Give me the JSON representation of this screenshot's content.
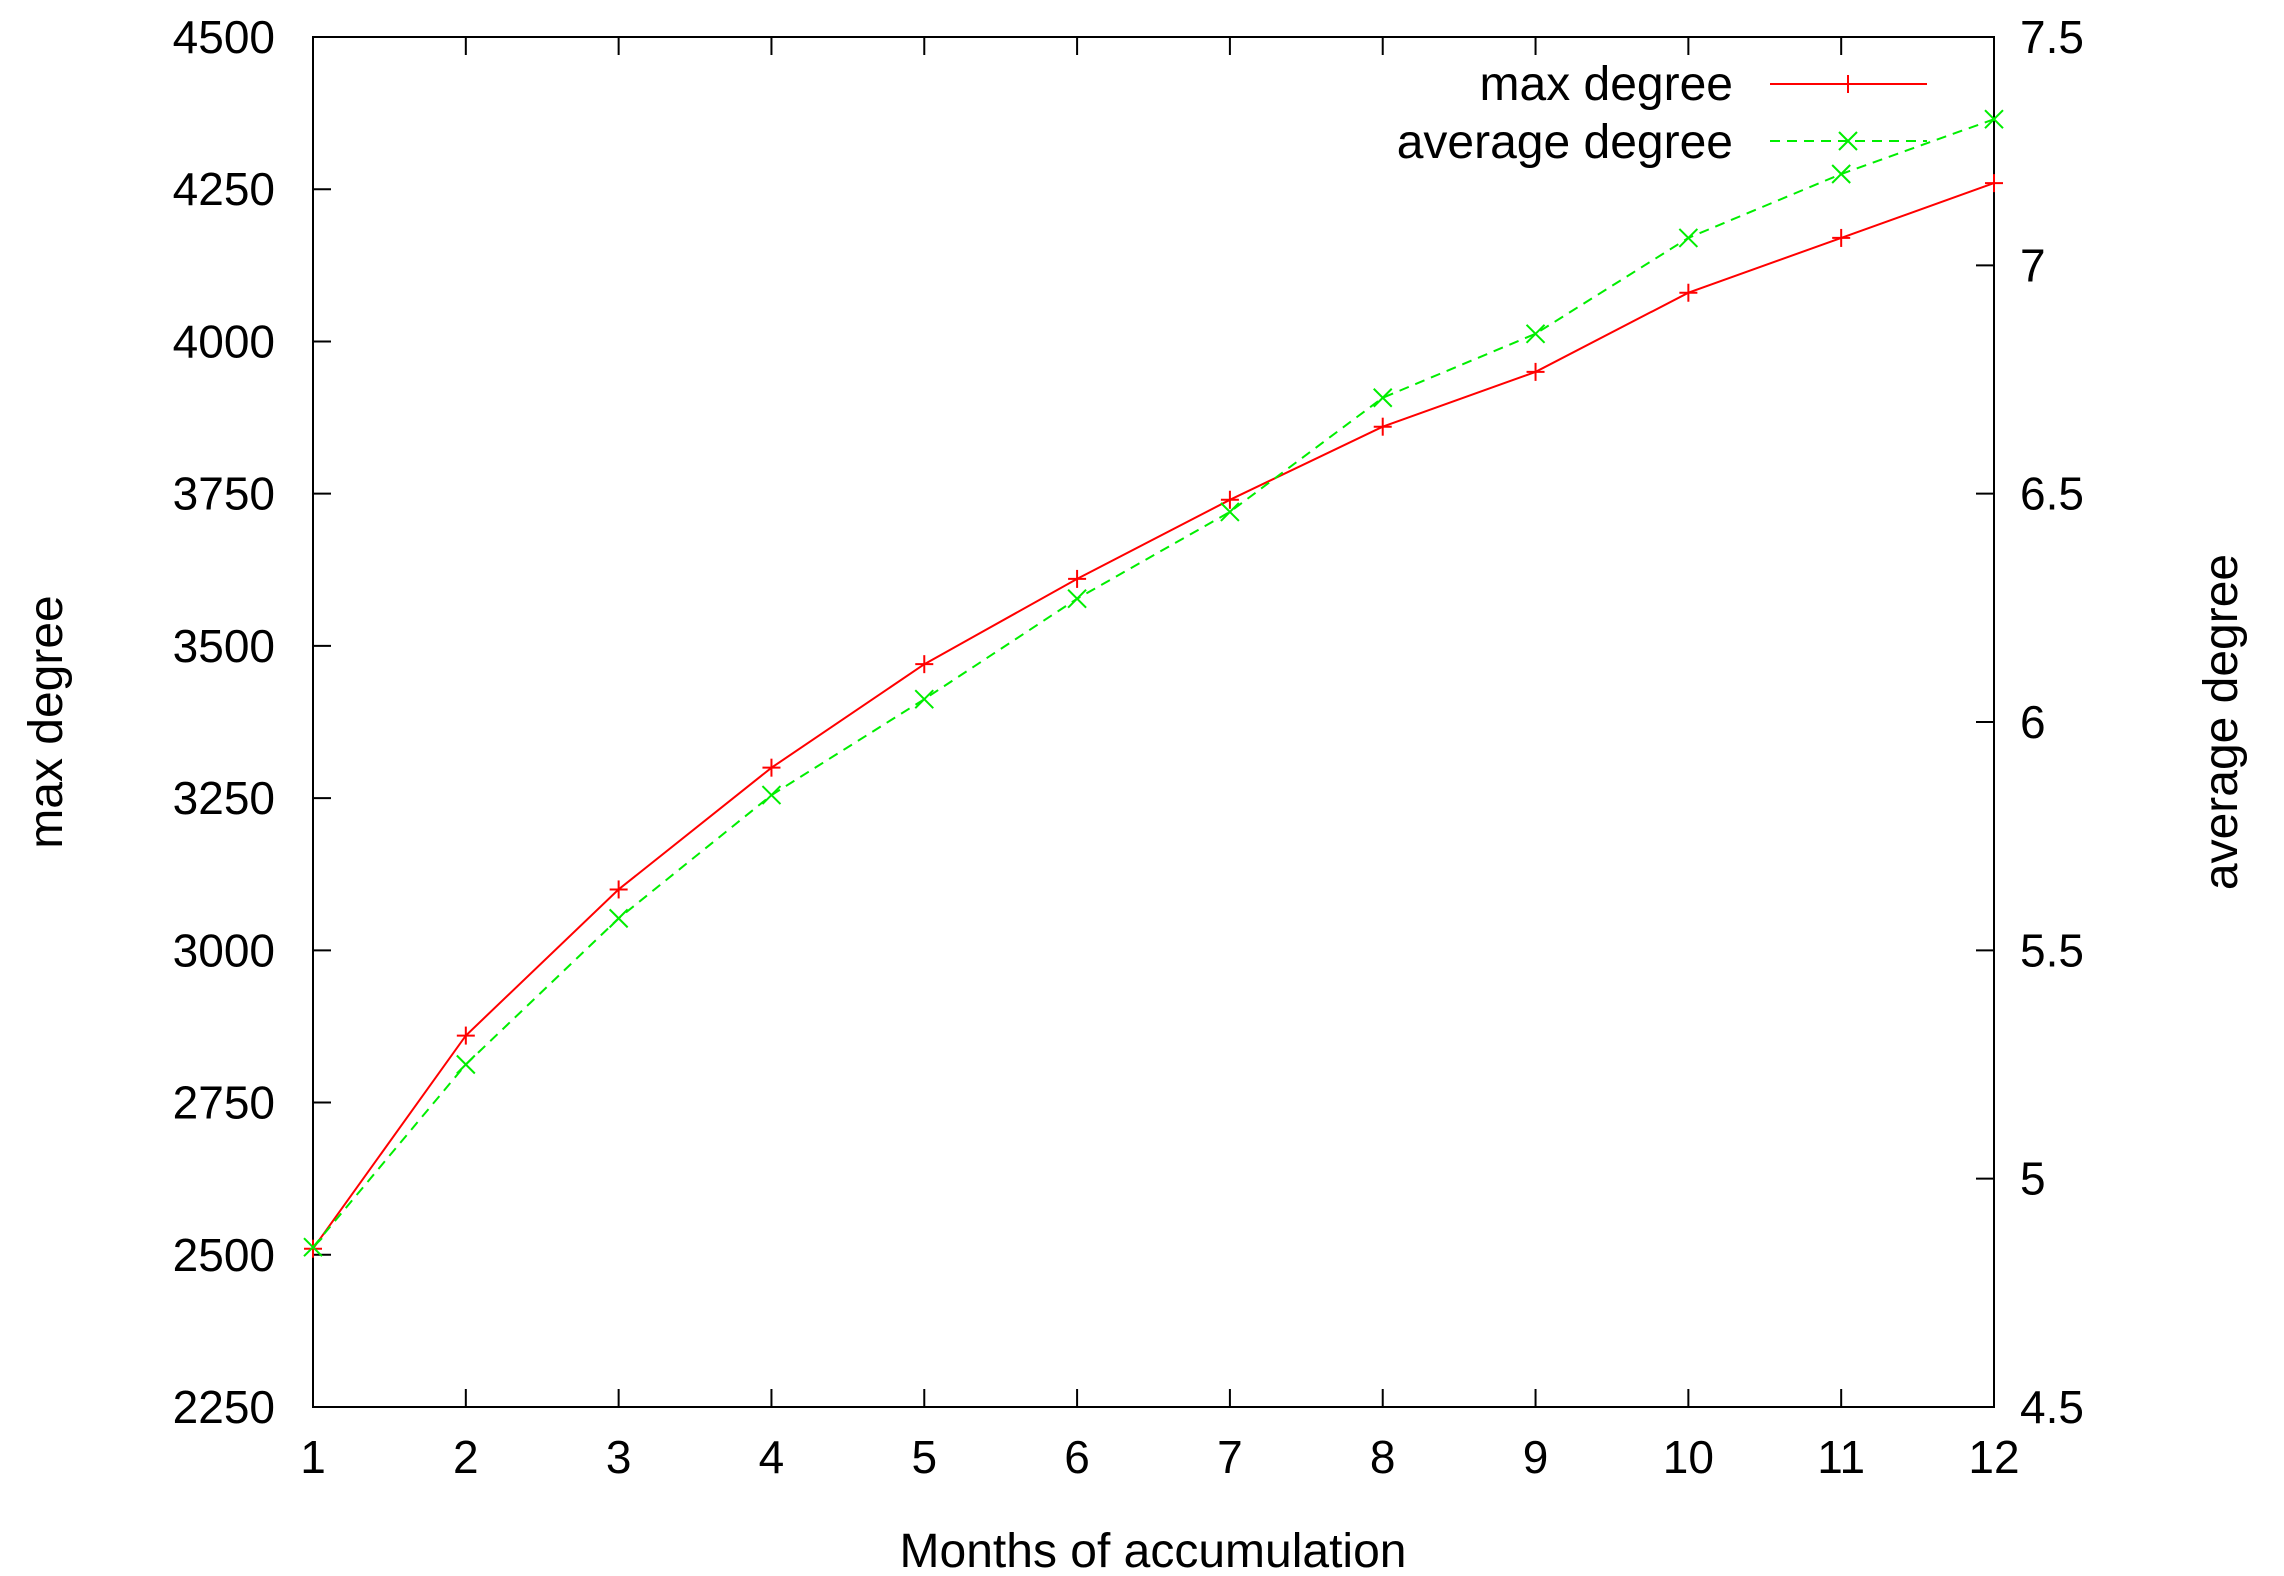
{
  "chart_data": {
    "type": "line",
    "title": "",
    "xlabel": "Months of accumulation",
    "ylabel": "max degree",
    "y2label": "average degree",
    "x": [
      1,
      2,
      3,
      4,
      5,
      6,
      7,
      8,
      9,
      10,
      11,
      12
    ],
    "xlim": [
      1,
      12
    ],
    "ylim": [
      2250,
      4500
    ],
    "y2lim": [
      4.5,
      7.5
    ],
    "xticks": [
      "1",
      "2",
      "3",
      "4",
      "5",
      "6",
      "7",
      "8",
      "9",
      "10",
      "11",
      "12"
    ],
    "yticks": [
      "2250",
      "2500",
      "2750",
      "3000",
      "3250",
      "3500",
      "3750",
      "4000",
      "4250",
      "4500"
    ],
    "y2ticks": [
      "4.5",
      "5",
      "5.5",
      "6",
      "6.5",
      "7",
      "7.5"
    ],
    "grid": false,
    "legend_position": "top-right",
    "series": [
      {
        "name": "max degree",
        "axis": "left",
        "color": "#ff0000",
        "marker": "plus",
        "line_style": "solid",
        "values": [
          2510,
          2860,
          3100,
          3300,
          3470,
          3610,
          3740,
          3860,
          3950,
          4080,
          4170,
          4260
        ]
      },
      {
        "name": "average degree",
        "axis": "right",
        "color": "#00ee00",
        "marker": "cross",
        "line_style": "dashed",
        "values": [
          4.85,
          5.25,
          5.57,
          5.84,
          6.05,
          6.27,
          6.46,
          6.71,
          6.85,
          7.06,
          7.2,
          7.32
        ]
      }
    ]
  }
}
